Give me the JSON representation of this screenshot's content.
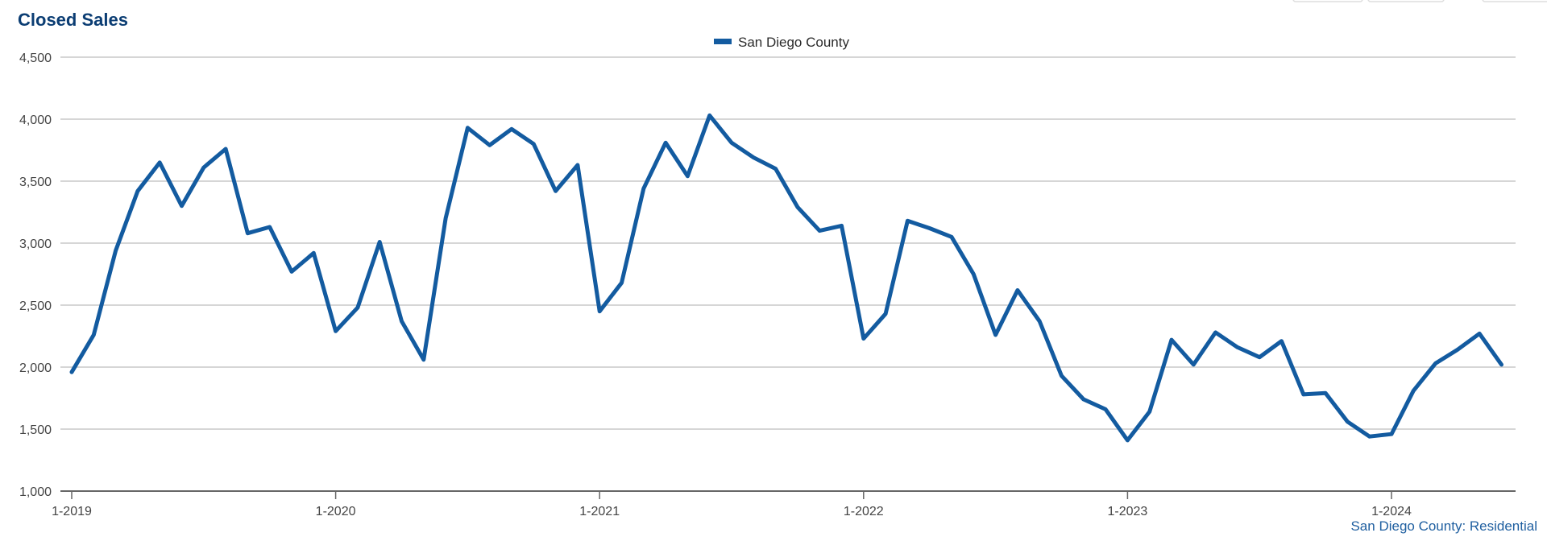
{
  "chart_data": {
    "type": "line",
    "title": "Closed Sales",
    "source_label": "San Diego County: Residential",
    "ylim": [
      1000,
      4500
    ],
    "y_ticks": [
      "4,500",
      "4,000",
      "3,500",
      "3,000",
      "2,500",
      "2,000",
      "1,500",
      "1,000"
    ],
    "x_ticks": [
      "1-2019",
      "1-2020",
      "1-2021",
      "1-2022",
      "1-2023",
      "1-2024"
    ],
    "grid": true,
    "legend_position": "top-center",
    "series": [
      {
        "name": "San Diego County",
        "color": "#135ba0",
        "values": [
          1960,
          2260,
          2940,
          3420,
          3650,
          3300,
          3610,
          3760,
          3080,
          3130,
          2770,
          2920,
          2290,
          2480,
          3010,
          2370,
          2060,
          3200,
          3930,
          3790,
          3920,
          3800,
          3420,
          3630,
          2450,
          2680,
          3440,
          3810,
          3540,
          4030,
          3810,
          3690,
          3600,
          3290,
          3100,
          3140,
          2230,
          2430,
          3180,
          3120,
          3050,
          2750,
          2260,
          2620,
          2370,
          1930,
          1740,
          1660,
          1410,
          1640,
          2220,
          2020,
          2280,
          2160,
          2080,
          2210,
          1780,
          1790,
          1560,
          1440,
          1460,
          1810,
          2030,
          2140,
          2270,
          2020
        ]
      }
    ]
  }
}
